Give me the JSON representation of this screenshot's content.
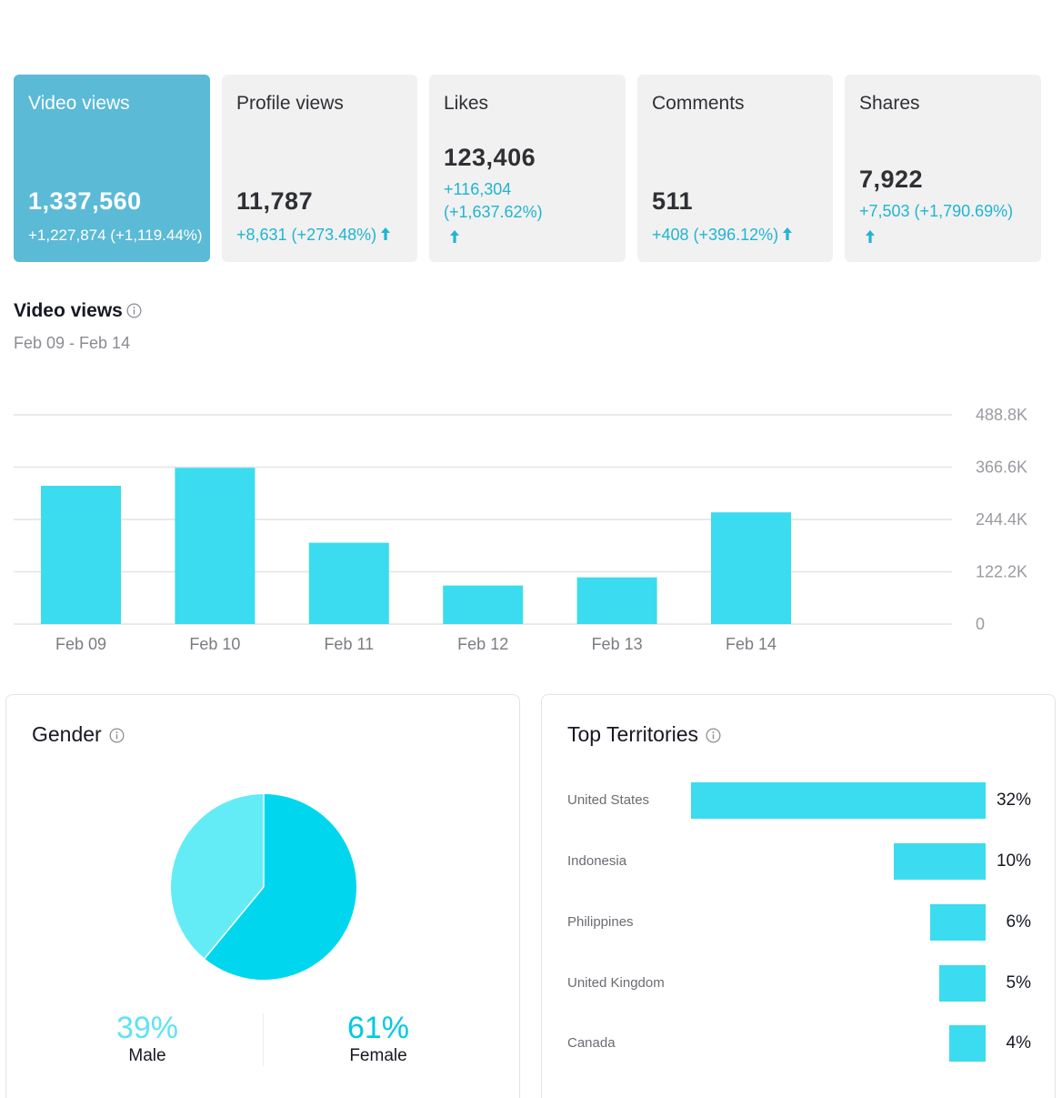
{
  "metrics": [
    {
      "title": "Video views",
      "value": "1,337,560",
      "change": "+1,227,874 (+1,119.44%)",
      "active": true
    },
    {
      "title": "Profile views",
      "value": "11,787",
      "change": "+8,631 (+273.48%)",
      "active": false
    },
    {
      "title": "Likes",
      "value": "123,406",
      "change_line1": "+116,304",
      "change_line2": "(+1,637.62%)",
      "active": false
    },
    {
      "title": "Comments",
      "value": "511",
      "change": "+408 (+396.12%)",
      "active": false
    },
    {
      "title": "Shares",
      "value": "7,922",
      "change": "+7,503 (+1,790.69%)",
      "active": false
    }
  ],
  "video_views": {
    "title": "Video views",
    "date_range": "Feb 09 - Feb 14",
    "info_icon": "info-icon"
  },
  "chart_data": {
    "type": "bar",
    "title": "Video views",
    "categories": [
      "Feb 09",
      "Feb 10",
      "Feb 11",
      "Feb 12",
      "Feb 13",
      "Feb 14"
    ],
    "values": [
      323000,
      365000,
      190000,
      90000,
      109000,
      261000
    ],
    "yticks": [
      "0",
      "122.2K",
      "244.4K",
      "366.6K",
      "488.8K"
    ],
    "ytick_values": [
      0,
      122200,
      244400,
      366600,
      488800
    ],
    "ylim": [
      0,
      488800
    ],
    "grid": true,
    "bar_color": "#3bdcef"
  },
  "gender": {
    "title": "Gender",
    "male_pct": "39%",
    "male_label": "Male",
    "female_pct": "61%",
    "female_label": "Female",
    "male_value": 39,
    "female_value": 61,
    "male_color": "#63ecf6",
    "female_color": "#00d7ef"
  },
  "territories": {
    "title": "Top Territories",
    "items": [
      {
        "name": "United States",
        "pct": "32%",
        "value": 32
      },
      {
        "name": "Indonesia",
        "pct": "10%",
        "value": 10
      },
      {
        "name": "Philippines",
        "pct": "6%",
        "value": 6
      },
      {
        "name": "United Kingdom",
        "pct": "5%",
        "value": 5
      },
      {
        "name": "Canada",
        "pct": "4%",
        "value": 4
      }
    ]
  },
  "colors": {
    "accent": "#20b5d0",
    "active_card": "#5bbad6",
    "bar": "#3bdcef"
  }
}
